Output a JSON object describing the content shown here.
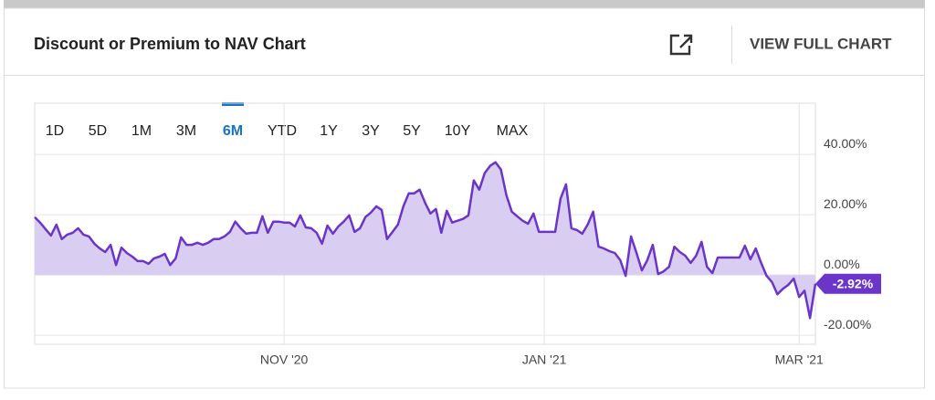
{
  "header": {
    "title": "Discount or Premium to NAV Chart",
    "action": "VIEW FULL CHART"
  },
  "range_buttons": [
    "1D",
    "5D",
    "1M",
    "3M",
    "6M",
    "YTD",
    "1Y",
    "3Y",
    "5Y",
    "10Y",
    "MAX"
  ],
  "chart_data": {
    "type": "area",
    "categories": [
      null,
      null,
      null,
      null,
      null,
      null,
      null,
      null,
      null,
      null,
      null,
      null,
      null,
      null,
      null,
      null,
      null,
      null,
      null,
      null,
      null,
      null,
      null,
      null,
      null,
      null,
      null,
      null,
      null,
      null,
      null,
      null,
      null,
      null,
      null,
      null,
      null,
      null,
      null,
      null,
      null,
      null,
      null,
      null,
      null,
      null,
      "NOV '20",
      null,
      null,
      null,
      null,
      null,
      null,
      null,
      null,
      null,
      null,
      null,
      null,
      null,
      null,
      null,
      null,
      null,
      null,
      null,
      null,
      null,
      null,
      null,
      null,
      null,
      null,
      null,
      null,
      null,
      null,
      null,
      null,
      null,
      null,
      null,
      null,
      null,
      null,
      null,
      null,
      null,
      null,
      null,
      null,
      null,
      null,
      null,
      "JAN '21",
      null,
      null,
      null,
      null,
      null,
      null,
      null,
      null,
      null,
      null,
      null,
      null,
      null,
      null,
      null,
      null,
      null,
      null,
      null,
      null,
      null,
      null,
      null,
      null,
      null,
      null,
      null,
      null,
      null,
      null,
      null,
      null,
      null,
      null,
      null,
      null,
      null,
      null,
      null,
      null,
      null,
      null,
      null,
      null,
      null,
      null,
      "MAR '21",
      null,
      null,
      null
    ],
    "values": [
      19.2,
      17.4,
      15.2,
      13.1,
      16.7,
      11.9,
      13.4,
      14.0,
      15.5,
      13.4,
      12.8,
      10.4,
      8.8,
      7.6,
      10.0,
      3.3,
      9.1,
      7.3,
      6.1,
      4.6,
      4.6,
      3.7,
      5.5,
      6.1,
      7.0,
      3.3,
      5.5,
      12.5,
      10.0,
      10.0,
      10.7,
      10.0,
      10.7,
      11.9,
      11.9,
      12.8,
      14.3,
      17.7,
      15.5,
      13.7,
      14.0,
      14.0,
      19.5,
      14.0,
      17.7,
      17.7,
      17.4,
      17.4,
      16.1,
      19.8,
      15.8,
      15.5,
      14.0,
      10.4,
      16.4,
      13.7,
      16.1,
      17.7,
      19.8,
      14.3,
      15.5,
      19.2,
      20.7,
      22.8,
      21.6,
      11.9,
      14.3,
      16.7,
      22.8,
      27.1,
      27.1,
      28.3,
      24.0,
      20.4,
      21.9,
      14.0,
      21.3,
      17.4,
      18.0,
      18.6,
      19.8,
      31.4,
      28.3,
      33.8,
      36.2,
      37.4,
      35.0,
      26.5,
      21.0,
      19.5,
      18.0,
      17.0,
      20.4,
      14.3,
      14.3,
      14.3,
      14.3,
      25.3,
      30.1,
      15.5,
      14.9,
      13.7,
      16.7,
      21.0,
      9.4,
      8.8,
      7.9,
      7.3,
      4.9,
      -0.3,
      12.8,
      7.3,
      1.5,
      4.9,
      10.0,
      0.3,
      1.2,
      2.7,
      9.4,
      7.6,
      6.4,
      4.0,
      6.4,
      11.0,
      2.7,
      0.6,
      5.8,
      5.8,
      5.8,
      5.8,
      5.8,
      9.7,
      5.2,
      8.8,
      4.0,
      -0.3,
      -2.4,
      -6.4,
      -4.6,
      -3.3,
      -1.2,
      -7.3,
      -5.2,
      -14.3,
      -2.92
    ],
    "value_labels": [
      null,
      null,
      null,
      null,
      null,
      null,
      null,
      null,
      null,
      null,
      null,
      null,
      null,
      null,
      null,
      null,
      null,
      null,
      null,
      null,
      null,
      null,
      null,
      null,
      null,
      null,
      null,
      null,
      null,
      null,
      null,
      null,
      null,
      null,
      null,
      null,
      null,
      null,
      null,
      null,
      null,
      null,
      null,
      null,
      null,
      null,
      null,
      null,
      null,
      null,
      null,
      null,
      null,
      null,
      null,
      null,
      null,
      null,
      null,
      null,
      null,
      null,
      null,
      null,
      null,
      null,
      null,
      null,
      null,
      null,
      null,
      null,
      null,
      null,
      null,
      null,
      null,
      null,
      null,
      null,
      null,
      null,
      null,
      null,
      null,
      null,
      null,
      null,
      null,
      null,
      null,
      null,
      null,
      null,
      null,
      null,
      null,
      null,
      null,
      null,
      null,
      null,
      null,
      null,
      null,
      null,
      null,
      null,
      null,
      null,
      null,
      null,
      null,
      null,
      null,
      null,
      null,
      null,
      null,
      null,
      null,
      null,
      null,
      null,
      null,
      null,
      null,
      null,
      null,
      null,
      null,
      null,
      null,
      null,
      null,
      null,
      null,
      null,
      null,
      null,
      null,
      null,
      null,
      null,
      "-2.92%"
    ],
    "color": "#6b35c9",
    "fill_color": "#dacdf2",
    "ylim": [
      -23,
      57
    ],
    "yticks": [
      {
        "value": 40,
        "label": "40.00%"
      },
      {
        "value": 20,
        "label": "20.00%"
      },
      {
        "value": 0,
        "label": "0.00%"
      },
      {
        "value": -20,
        "label": "-20.00%"
      }
    ],
    "grid": true
  }
}
